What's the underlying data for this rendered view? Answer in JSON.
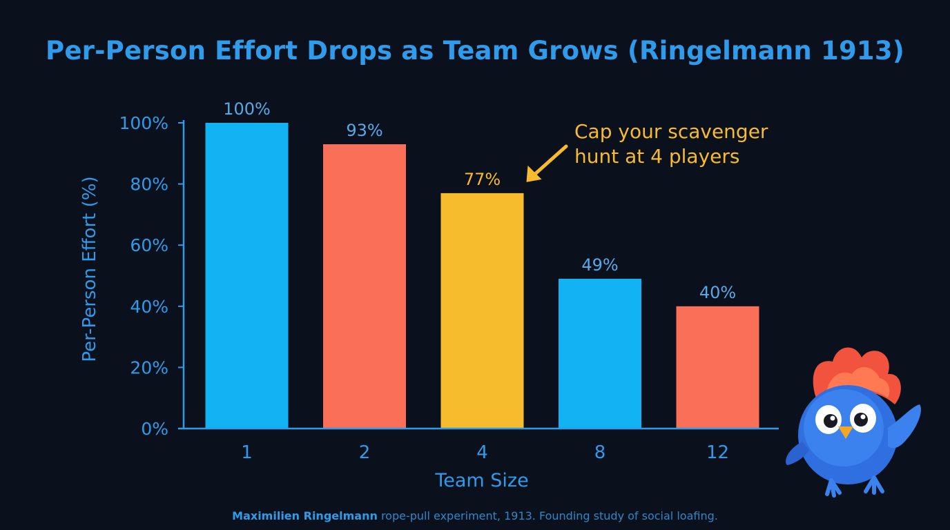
{
  "chart_data": {
    "type": "bar",
    "title": "Per-Person Effort Drops as Team Grows (Ringelmann 1913)",
    "xlabel": "Team Size",
    "ylabel": "Per-Person Effort (%)",
    "categories": [
      "1",
      "2",
      "4",
      "8",
      "12"
    ],
    "values": [
      100,
      93,
      77,
      49,
      40
    ],
    "value_labels": [
      "100%",
      "93%",
      "77%",
      "49%",
      "40%"
    ],
    "bar_colors": [
      "#12b3f3",
      "#fa6f57",
      "#f7bb2e",
      "#12b3f3",
      "#fa6f57"
    ],
    "ylim": [
      0,
      100
    ],
    "yticks": [
      0,
      20,
      40,
      60,
      80,
      100
    ],
    "ytick_labels": [
      "0%",
      "20%",
      "40%",
      "60%",
      "80%",
      "100%"
    ],
    "grid": false,
    "annotation": {
      "text_line1": "Cap your scavenger",
      "text_line2": "hunt at 4 players",
      "target_category": "4",
      "color": "#f7bb2e"
    }
  },
  "caption": {
    "bold": "Maximilien Ringelmann",
    "rest": " rope-pull experiment, 1913. Founding study of social loafing."
  },
  "colors": {
    "background": "#0b111c",
    "axis": "#2f9bea",
    "label": "#2f9bea",
    "value_label": "#58a9e6",
    "mascot_body": "#2f6fe0",
    "mascot_crest": "#f2533f"
  },
  "icons": {
    "mascot": "blue-bird-mascot-icon"
  }
}
